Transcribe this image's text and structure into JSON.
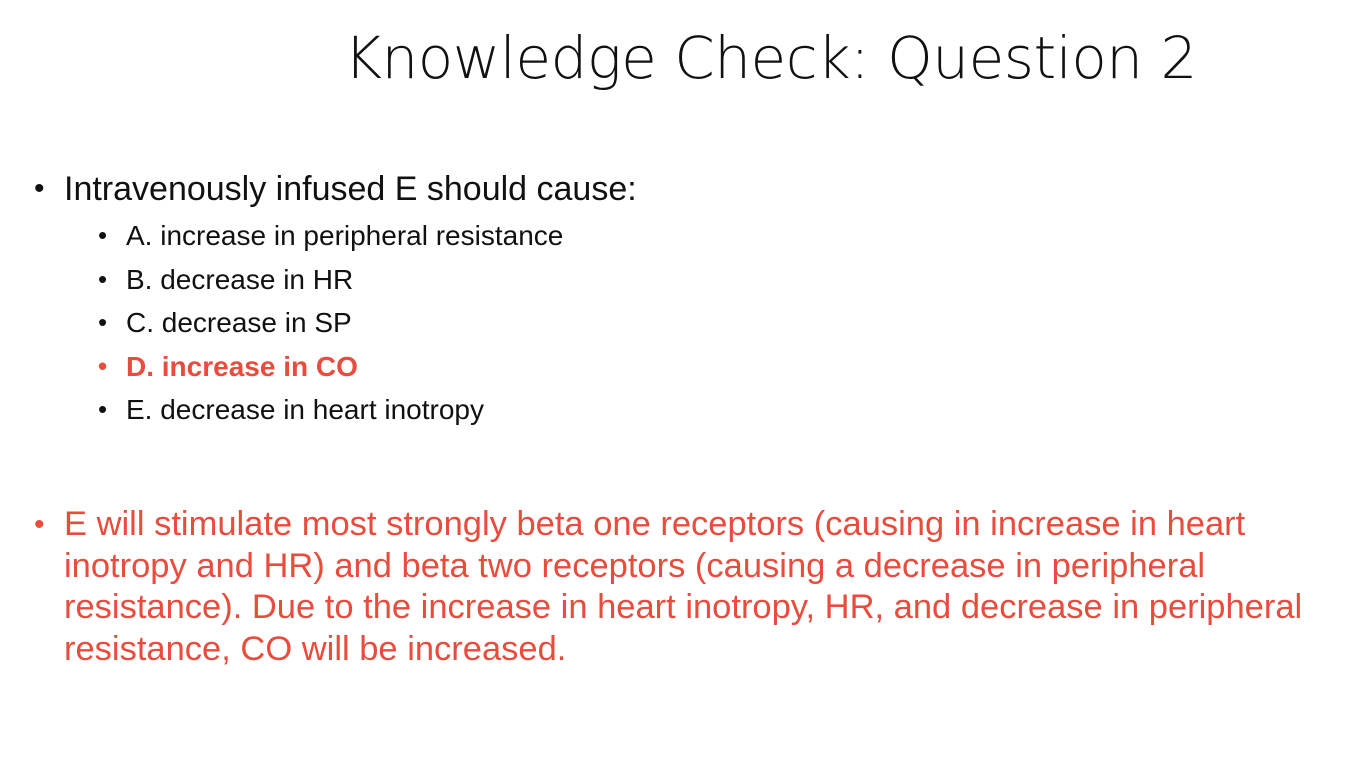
{
  "slide": {
    "title": "Knowledge Check: Question 2",
    "question": {
      "bullet": "•",
      "text": "Intravenously infused E should cause:"
    },
    "options": [
      {
        "text": "A. increase in peripheral resistance",
        "correct": false
      },
      {
        "text": "B. decrease in HR",
        "correct": false
      },
      {
        "text": "C. decrease in SP",
        "correct": false
      },
      {
        "text": "D. increase in CO",
        "correct": true
      },
      {
        "text": "E. decrease in heart inotropy",
        "correct": false
      }
    ],
    "explanation": {
      "bullet": "•",
      "text": "E will stimulate most strongly beta one receptors (causing in increase in heart inotropy and HR) and beta two receptors (causing a decrease in peripheral resistance). Due to the increase in heart inotropy, HR, and decrease in peripheral resistance, CO will be increased."
    },
    "colors": {
      "text": "#111111",
      "highlight": "#e84c3d",
      "background": "#ffffff"
    }
  }
}
